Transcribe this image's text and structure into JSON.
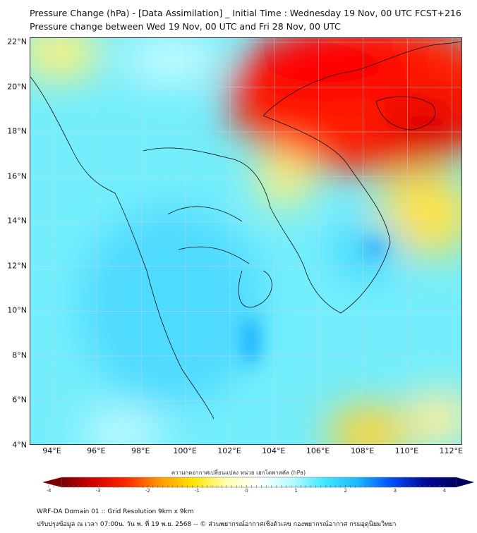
{
  "title": {
    "line1": "Pressure Change (hPa) - [Data Assimilation] _ Initial Time : Wednesday 19 Nov, 00 UTC FCST+216",
    "line2": "Pressure change between Wed 19 Nov, 00 UTC and Fri 28 Nov, 00 UTC"
  },
  "map": {
    "lat_range": [
      4,
      22
    ],
    "lon_range": [
      93,
      112.5
    ],
    "lat_labels": [
      "22°N",
      "20°N",
      "18°N",
      "16°N",
      "14°N",
      "12°N",
      "10°N",
      "8°N",
      "6°N",
      "4°N"
    ],
    "lon_labels": [
      "94°E",
      "96°E",
      "98°E",
      "100°E",
      "102°E",
      "104°E",
      "106°E",
      "108°E",
      "110°E",
      "112°E"
    ]
  },
  "colorbar": {
    "label": "ความกดอากาศเปลี่ยนแปลง หน่วย เฮกโตพาสคัล (hPa)",
    "ticks": [
      "-4",
      "-3",
      "-2",
      "-1",
      "0",
      "1",
      "2",
      "3",
      "4"
    ],
    "range": [
      -4,
      4
    ],
    "colors": [
      "#7a0000",
      "#d40000",
      "#ff2a00",
      "#ff9a00",
      "#ffe600",
      "#ffffb0",
      "#ffffff",
      "#b8fbff",
      "#3fe8ff",
      "#1ab8ff",
      "#0050ff",
      "#000a9a",
      "#000060"
    ]
  },
  "footer": {
    "line1": "WRF-DA Domain 01 :: Grid Resolution 9km x 9km",
    "line2": "ปรับปรุงข้อมูล ณ เวลา 07:00น. วัน พ. ที่ 19 พ.ย. 2568 -- © ส่วนพยากรณ์อากาศเชิงตัวเลข กองพยากรณ์อากาศ กรมอุตุนิยมวิทยา"
  }
}
